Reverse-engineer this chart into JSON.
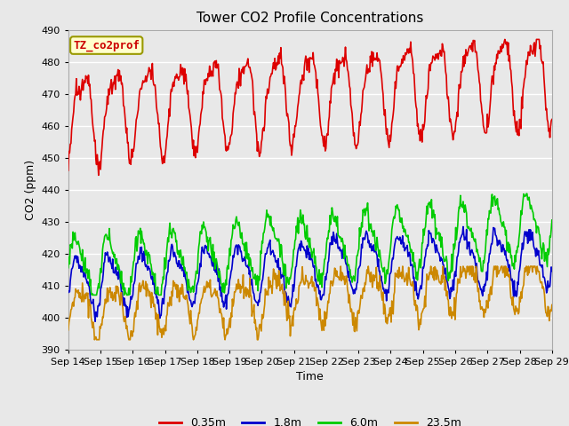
{
  "title": "Tower CO2 Profile Concentrations",
  "xlabel": "Time",
  "ylabel": "CO2 (ppm)",
  "ylim": [
    390,
    490
  ],
  "yticks": [
    390,
    400,
    410,
    420,
    430,
    440,
    450,
    460,
    470,
    480,
    490
  ],
  "x_labels": [
    "Sep 14",
    "Sep 15",
    "Sep 16",
    "Sep 17",
    "Sep 18",
    "Sep 19",
    "Sep 20",
    "Sep 21",
    "Sep 22",
    "Sep 23",
    "Sep 24",
    "Sep 25",
    "Sep 26",
    "Sep 27",
    "Sep 28",
    "Sep 29"
  ],
  "series": {
    "0.35m": {
      "color": "#dd0000",
      "lw": 1.2
    },
    "1.8m": {
      "color": "#0000cc",
      "lw": 1.2
    },
    "6.0m": {
      "color": "#00cc00",
      "lw": 1.2
    },
    "23.5m": {
      "color": "#cc8800",
      "lw": 1.2
    }
  },
  "legend_label": "TZ_co2prof",
  "legend_bg": "#ffffcc",
  "legend_border": "#999900",
  "bg_color": "#e8e8e8",
  "plot_bg": "#e8e8e8",
  "grid_color": "#ffffff",
  "title_fontsize": 11,
  "axis_fontsize": 9,
  "tick_fontsize": 8
}
